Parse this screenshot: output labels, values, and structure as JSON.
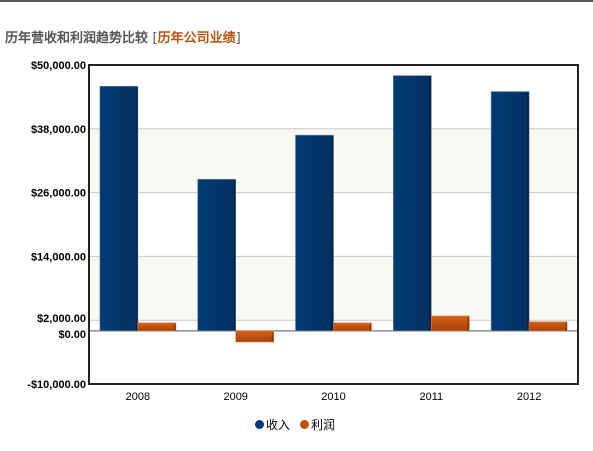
{
  "header": {
    "title": "历年营收和利润趋势比较",
    "bracket_open": "[",
    "link_label": "历年公司业绩",
    "bracket_close": "]"
  },
  "colors": {
    "revenue": "#003b73",
    "profit": "#c04f0e",
    "band": "#f8f8f4",
    "link": "#b8530f"
  },
  "chart_data": {
    "type": "bar",
    "categories": [
      "2008",
      "2009",
      "2010",
      "2011",
      "2012"
    ],
    "series": [
      {
        "name": "收入",
        "values": [
          46000,
          28500,
          36800,
          48000,
          45000
        ]
      },
      {
        "name": "利润",
        "values": [
          1500,
          -2100,
          1500,
          2800,
          1700
        ]
      }
    ],
    "y_ticks": [
      50000,
      38000,
      26000,
      14000,
      2000,
      0,
      -10000
    ],
    "y_tick_labels": [
      "$50,000.00",
      "$38,000.00",
      "$26,000.00",
      "$14,000.00",
      "$2,000.00",
      "$0.00",
      "-$10,000.00"
    ],
    "ylim": [
      -10000,
      50000
    ],
    "grid": true,
    "legend_position": "bottom-center"
  }
}
